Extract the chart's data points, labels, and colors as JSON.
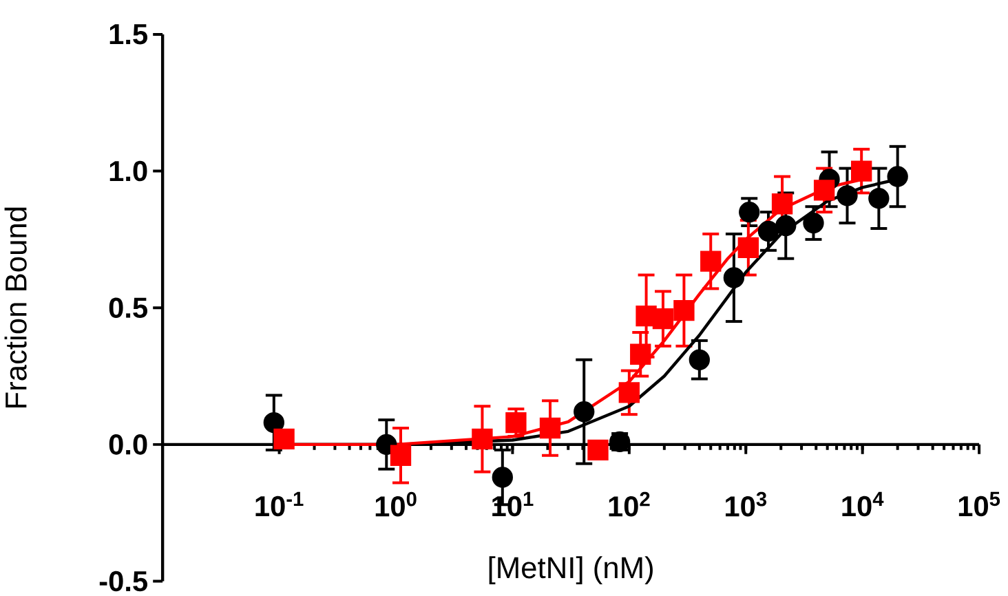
{
  "chart_data": {
    "type": "scatter",
    "xlabel": "[MetNI] (nM)",
    "ylabel": "Fraction Bound",
    "log": "x",
    "xlim": [
      0.01,
      100000
    ],
    "ylim": [
      -0.5,
      1.5
    ],
    "xticks": [
      {
        "value": 0.1,
        "label": "10$^{-1}$"
      },
      {
        "value": 1,
        "label": "10$^{0}$"
      },
      {
        "value": 10,
        "label": "10$^{1}$"
      },
      {
        "value": 100,
        "label": "10$^{2}$"
      },
      {
        "value": 1000,
        "label": "10$^{3}$"
      },
      {
        "value": 10000,
        "label": "10$^{4}$"
      },
      {
        "value": 100000,
        "label": "10$^{5}$"
      }
    ],
    "yticks": [
      {
        "value": -0.5,
        "label": "-0.5"
      },
      {
        "value": 0,
        "label": "0.0"
      },
      {
        "value": 0.5,
        "label": "0.5"
      },
      {
        "value": 1,
        "label": "1.0"
      },
      {
        "value": 1.5,
        "label": "1.5"
      }
    ],
    "grid": false,
    "series": [
      {
        "color": "#000000",
        "marker": "circle",
        "x": [
          0.09,
          0.83,
          8.2,
          41,
          83,
          400,
          790,
          1070,
          1560,
          2200,
          3800,
          5200,
          7400,
          13800,
          20000
        ],
        "values": [
          0.08,
          0.0,
          -0.12,
          0.12,
          0.01,
          0.31,
          0.61,
          0.85,
          0.78,
          0.8,
          0.81,
          0.97,
          0.91,
          0.9,
          0.98
        ],
        "errors": [
          0.1,
          0.09,
          0.1,
          0.19,
          0.03,
          0.07,
          0.16,
          0.05,
          0.07,
          0.12,
          0.06,
          0.1,
          0.1,
          0.11,
          0.11
        ]
      },
      {
        "color": "#ff0000",
        "marker": "square",
        "x": [
          0.11,
          1.1,
          5.5,
          10.7,
          21,
          54,
          100,
          125,
          140,
          195,
          295,
          500,
          1050,
          2050,
          4700,
          9800
        ],
        "values": [
          0.02,
          -0.04,
          0.02,
          0.08,
          0.06,
          -0.02,
          0.19,
          0.33,
          0.47,
          0.46,
          0.49,
          0.67,
          0.72,
          0.88,
          0.93,
          1.0
        ],
        "errors": [
          null,
          0.1,
          0.12,
          0.05,
          0.1,
          null,
          0.08,
          0.08,
          0.15,
          0.1,
          0.13,
          0.1,
          0.1,
          0.1,
          0.08,
          0.08
        ]
      },
      {
        "type": "line",
        "color": "#000000",
        "marker": "none",
        "line_style": "solid",
        "x": [
          0.09,
          1,
          10,
          30,
          100,
          200,
          400,
          700,
          1000,
          2000,
          5000,
          10000,
          20000
        ],
        "values": [
          0,
          0,
          0.016,
          0.048,
          0.14,
          0.25,
          0.4,
          0.54,
          0.63,
          0.77,
          0.89,
          0.94,
          0.97
        ]
      },
      {
        "type": "line",
        "color": "#ff0000",
        "marker": "none",
        "line_style": "solid",
        "x": [
          0.1,
          1,
          10,
          30,
          100,
          200,
          400,
          700,
          1000,
          2000,
          5000,
          10000
        ],
        "values": [
          0,
          0,
          0.029,
          0.083,
          0.23,
          0.38,
          0.55,
          0.68,
          0.75,
          0.86,
          0.94,
          0.97
        ]
      }
    ]
  }
}
